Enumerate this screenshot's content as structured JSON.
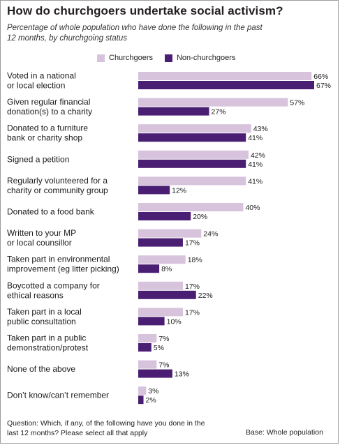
{
  "title": "How do churchgoers undertake social activism?",
  "subtitle": "Percentage of whole population who have done the following in the past 12 months, by churchgoing status",
  "legend": {
    "churchgoers_label": "Churchgoers",
    "nonchurchgoers_label": "Non-churchgoers"
  },
  "colors": {
    "churchgoers": "#d7c3dc",
    "nonchurchgoers": "#4a1f73"
  },
  "footer": {
    "question": "Question: Which, if any, of the following have you done in the last 12 months? Please select all that apply",
    "base": "Base: Whole population"
  },
  "chart_data": {
    "type": "bar",
    "orientation": "horizontal",
    "unit": "%",
    "categories": [
      [
        "Voted in a national",
        "or local election"
      ],
      [
        "Given regular financial",
        "donation(s) to a charity"
      ],
      [
        "Donated to a furniture",
        "bank or charity shop"
      ],
      [
        "Signed a petition"
      ],
      [
        "Regularly volunteered for a",
        "charity or community group"
      ],
      [
        "Donated to a food bank"
      ],
      [
        "Written to your MP",
        "or local counsillor"
      ],
      [
        "Taken part in environmental",
        "improvement (eg litter picking)"
      ],
      [
        "Boycotted a company for",
        "ethical reasons"
      ],
      [
        "Taken part in a local",
        "public consultation"
      ],
      [
        "Taken part in a public",
        "demonstration/protest"
      ],
      [
        "None of the above"
      ],
      [
        "Don’t know/can’t remember"
      ]
    ],
    "series": [
      {
        "name": "Churchgoers",
        "values": [
          66,
          57,
          43,
          42,
          41,
          40,
          24,
          18,
          17,
          17,
          7,
          7,
          3
        ]
      },
      {
        "name": "Non-churchgoers",
        "values": [
          67,
          27,
          41,
          41,
          12,
          20,
          17,
          8,
          22,
          10,
          5,
          13,
          2
        ]
      }
    ],
    "xlim": [
      0,
      67
    ],
    "grid": false,
    "legend_position": "top"
  }
}
